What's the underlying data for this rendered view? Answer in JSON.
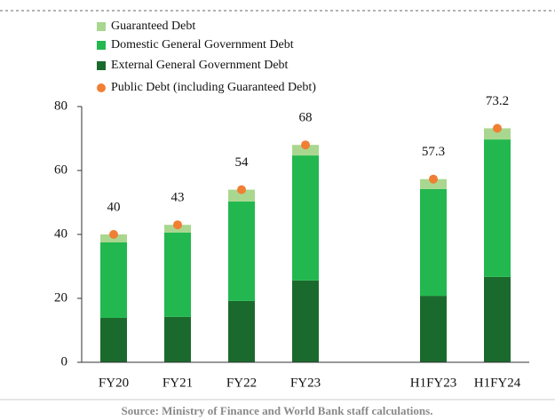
{
  "chart_data": {
    "type": "bar",
    "stacked": true,
    "categories": [
      "FY20",
      "FY21",
      "FY22",
      "FY23",
      null,
      "H1FY23",
      "H1FY24"
    ],
    "series": [
      {
        "name": "Guaranteed Debt",
        "color": "#a9d78f",
        "values": [
          2.5,
          2.4,
          3.7,
          3.3,
          null,
          3.1,
          3.5
        ]
      },
      {
        "name": "Domestic General Government Debt",
        "color": "#22b84f",
        "values": [
          23.6,
          26.4,
          31.1,
          39.1,
          null,
          33.4,
          43
        ]
      },
      {
        "name": "External General Government Debt",
        "color": "#1b6a2d",
        "values": [
          13.9,
          14.2,
          19.2,
          25.6,
          null,
          20.8,
          26.7
        ]
      },
      {
        "name": "Public Debt (including Guaranteed Debt)",
        "color": "#f07f34",
        "type": "scatter",
        "values": [
          40,
          43,
          54,
          68,
          null,
          57.3,
          73.2
        ]
      }
    ],
    "ylim": [
      0,
      80
    ],
    "yticks": [
      0,
      20,
      40,
      60,
      80
    ],
    "source": "Source: Ministry of Finance and World Bank staff calculations."
  }
}
